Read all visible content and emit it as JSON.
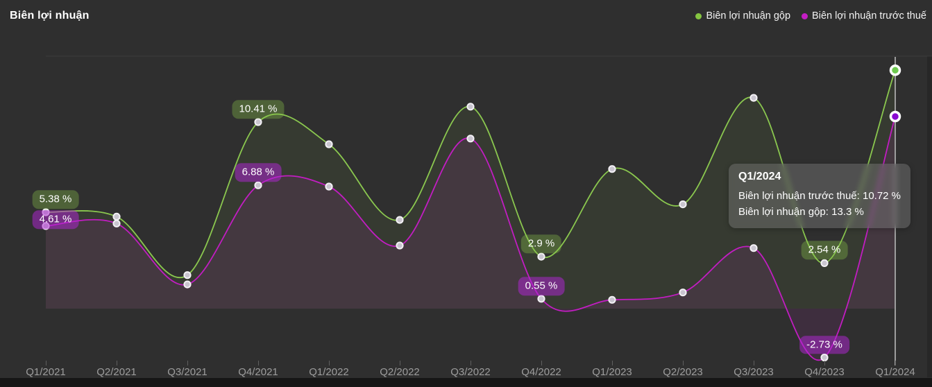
{
  "header": {
    "title": "Biên lợi nhuận"
  },
  "legend": [
    {
      "label": "Biên lợi nhuận gộp",
      "color": "#85c541"
    },
    {
      "label": "Biên lợi nhuận trước thuế",
      "color": "#c41dc4"
    }
  ],
  "tooltip": {
    "title": "Q1/2024",
    "lines": [
      "Biên lợi nhuận trước thuế: 10.72 %",
      "Biên lợi nhuận gộp: 13.3 %"
    ]
  },
  "chart_data": {
    "type": "line",
    "title": "Biên lợi nhuận",
    "categories": [
      "Q1/2021",
      "Q2/2021",
      "Q3/2021",
      "Q4/2021",
      "Q1/2022",
      "Q2/2022",
      "Q3/2022",
      "Q4/2022",
      "Q1/2023",
      "Q2/2023",
      "Q3/2023",
      "Q4/2023",
      "Q1/2024"
    ],
    "series": [
      {
        "name": "Biên lợi nhuận gộp",
        "color": "#8bc84f",
        "fill": "rgba(139,195,74,0.08)",
        "point_fill": "#c9c5cf",
        "active_fill": "#6ec94f",
        "values": [
          5.38,
          5.13,
          1.87,
          10.41,
          9.17,
          4.95,
          11.27,
          2.9,
          7.79,
          5.82,
          11.76,
          2.54,
          13.3
        ]
      },
      {
        "name": "Biên lợi nhuận trước thuế",
        "color": "#c21dc2",
        "fill": "rgba(196,38,196,0.10)",
        "point_fill": "#c9c5cf",
        "active_fill": "#8909d1",
        "values": [
          4.61,
          4.75,
          1.35,
          6.88,
          6.81,
          3.52,
          9.49,
          0.55,
          0.49,
          0.9,
          3.38,
          -2.73,
          10.72
        ]
      }
    ],
    "point_labels": [
      {
        "series": 0,
        "index": 0,
        "text": "5.38 %"
      },
      {
        "series": 1,
        "index": 0,
        "text": "4.61 %"
      },
      {
        "series": 0,
        "index": 3,
        "text": "10.41 %"
      },
      {
        "series": 1,
        "index": 3,
        "text": "6.88 %"
      },
      {
        "series": 0,
        "index": 7,
        "text": "2.9 %"
      },
      {
        "series": 1,
        "index": 7,
        "text": "0.55 %"
      },
      {
        "series": 0,
        "index": 11,
        "text": "2.54 %"
      },
      {
        "series": 1,
        "index": 11,
        "text": "-2.73 %"
      }
    ],
    "highlighted_category": "Q1/2024",
    "xlabel": "",
    "ylabel": "",
    "ylim": [
      -3.2,
      14.1
    ],
    "grid": false,
    "legend_position": "top-right"
  }
}
